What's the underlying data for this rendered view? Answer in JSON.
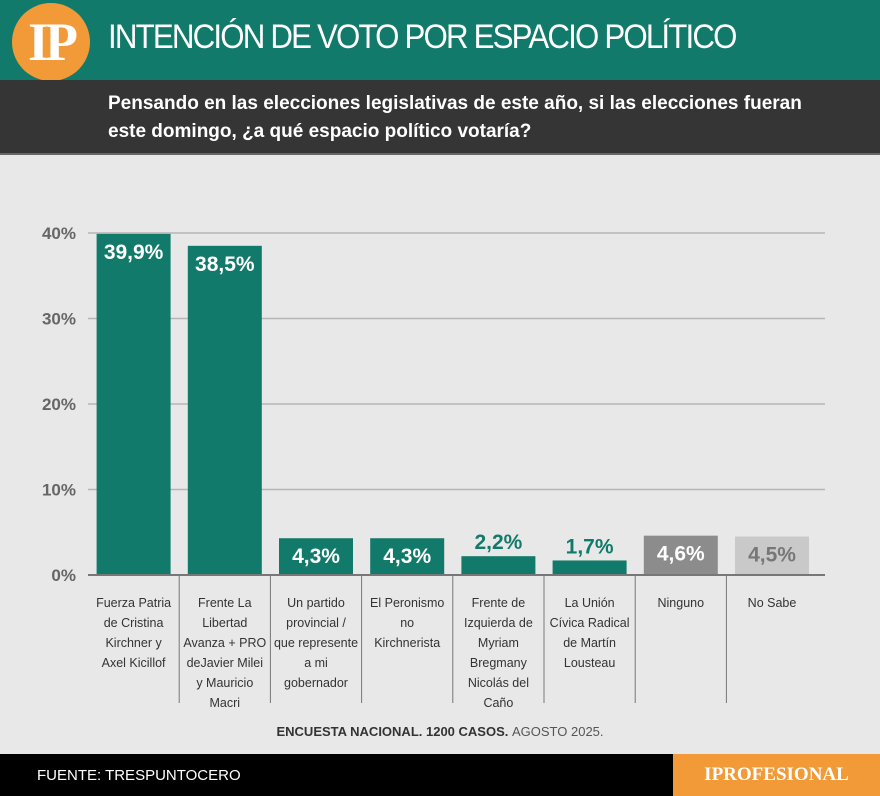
{
  "header": {
    "logo": "IP",
    "title": "INTENCIÓN DE VOTO POR ESPACIO POLÍTICO"
  },
  "subtitle": "Pensando en las elecciones legislativas de este año, si las elecciones fueran este domingo, ¿a qué espacio político votaría?",
  "chart_data": {
    "type": "bar",
    "categories": [
      "Fuerza Patria de Cristina Kirchner y Axel Kicillof",
      "Frente La Libertad Avanza + PRO deJavier Milei y Mauricio Macri",
      "Un partido provincial / que represente a mi gobernador",
      "El Peronismo no Kirchnerista",
      "Frente de Izquierda de Myriam Bregmany Nicolás del Caño",
      "La Unión Cívica Radical de Martín Lousteau",
      "Ninguno",
      "No Sabe"
    ],
    "values": [
      39.9,
      38.5,
      4.3,
      4.3,
      2.2,
      1.7,
      4.6,
      4.5
    ],
    "data_labels": [
      "39,9%",
      "38,5%",
      "4,3%",
      "4,3%",
      "2,2%",
      "1,7%",
      "4,6%",
      "4,5%"
    ],
    "colors": [
      "#117a6a",
      "#117a6a",
      "#117a6a",
      "#117a6a",
      "#117a6a",
      "#117a6a",
      "#8c8c8c",
      "#c9c9c9"
    ],
    "yticks": [
      "0%",
      "10%",
      "20%",
      "30%",
      "40%"
    ],
    "ylim": [
      0,
      40
    ],
    "grid": true
  },
  "note": {
    "main": "ENCUESTA NACIONAL. 1200 CASOS.",
    "date": "AGOSTO 2025."
  },
  "footer": {
    "source": "FUENTE: TRESPUNTOCERO",
    "brand": "IPROFESIONAL"
  }
}
